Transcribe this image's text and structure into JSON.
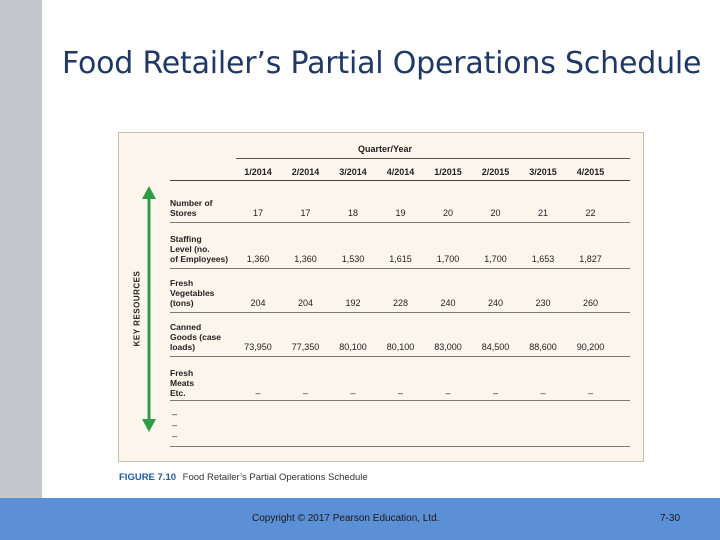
{
  "slide": {
    "title": "Food Retailer’s Partial Operations Schedule"
  },
  "figure": {
    "header": "Quarter/Year",
    "side_label": "KEY RESOURCES",
    "columns": [
      "1/2014",
      "2/2014",
      "3/2014",
      "4/2014",
      "1/2015",
      "2/2015",
      "3/2015",
      "4/2015"
    ],
    "rows": [
      {
        "label": [
          "Number of",
          "Stores"
        ],
        "values": [
          "17",
          "17",
          "18",
          "19",
          "20",
          "20",
          "21",
          "22"
        ]
      },
      {
        "label": [
          "Staffing",
          "Level (no.",
          "of Employees)"
        ],
        "values": [
          "1,360",
          "1,360",
          "1,530",
          "1,615",
          "1,700",
          "1,700",
          "1,653",
          "1,827"
        ]
      },
      {
        "label": [
          "Fresh",
          "Vegetables",
          "(tons)"
        ],
        "values": [
          "204",
          "204",
          "192",
          "228",
          "240",
          "240",
          "230",
          "260"
        ]
      },
      {
        "label": [
          "Canned",
          "Goods (case",
          "loads)"
        ],
        "values": [
          "73,950",
          "77,350",
          "80,100",
          "80,100",
          "83,000",
          "84,500",
          "88,600",
          "90,200"
        ]
      },
      {
        "label": [
          "Fresh",
          "Meats",
          "Etc."
        ],
        "values": [
          "–",
          "–",
          "–",
          "–",
          "–",
          "–",
          "–",
          "–"
        ]
      }
    ],
    "extra_dashes": [
      "–",
      "–",
      "–"
    ],
    "caption_number": "FIGURE 7.10",
    "caption_text": "Food Retailer’s Partial Operations Schedule",
    "arrow_color": "#2e9e46"
  },
  "footer": {
    "copyright": "Copyright © 2017 Pearson Education, Ltd.",
    "page": "7-30"
  }
}
